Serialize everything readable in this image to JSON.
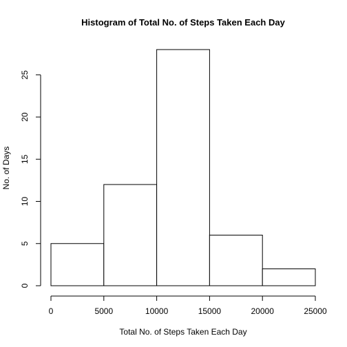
{
  "chart_data": {
    "type": "bar",
    "title": "Histogram of Total No. of Steps Taken Each Day",
    "xlabel": "Total No. of Steps Taken Each Day",
    "ylabel": "No. of Days",
    "bins": [
      {
        "from": 0,
        "to": 5000,
        "count": 5
      },
      {
        "from": 5000,
        "to": 10000,
        "count": 12
      },
      {
        "from": 10000,
        "to": 15000,
        "count": 28
      },
      {
        "from": 15000,
        "to": 20000,
        "count": 6
      },
      {
        "from": 20000,
        "to": 25000,
        "count": 2
      }
    ],
    "xlim": [
      0,
      25000
    ],
    "ylim": [
      0,
      28
    ],
    "x_ticks": [
      0,
      5000,
      10000,
      15000,
      20000,
      25000
    ],
    "y_ticks": [
      0,
      5,
      10,
      15,
      20,
      25
    ],
    "grid": false,
    "legend": "none",
    "bar_fill": "#ffffff",
    "bar_stroke": "#000000"
  }
}
